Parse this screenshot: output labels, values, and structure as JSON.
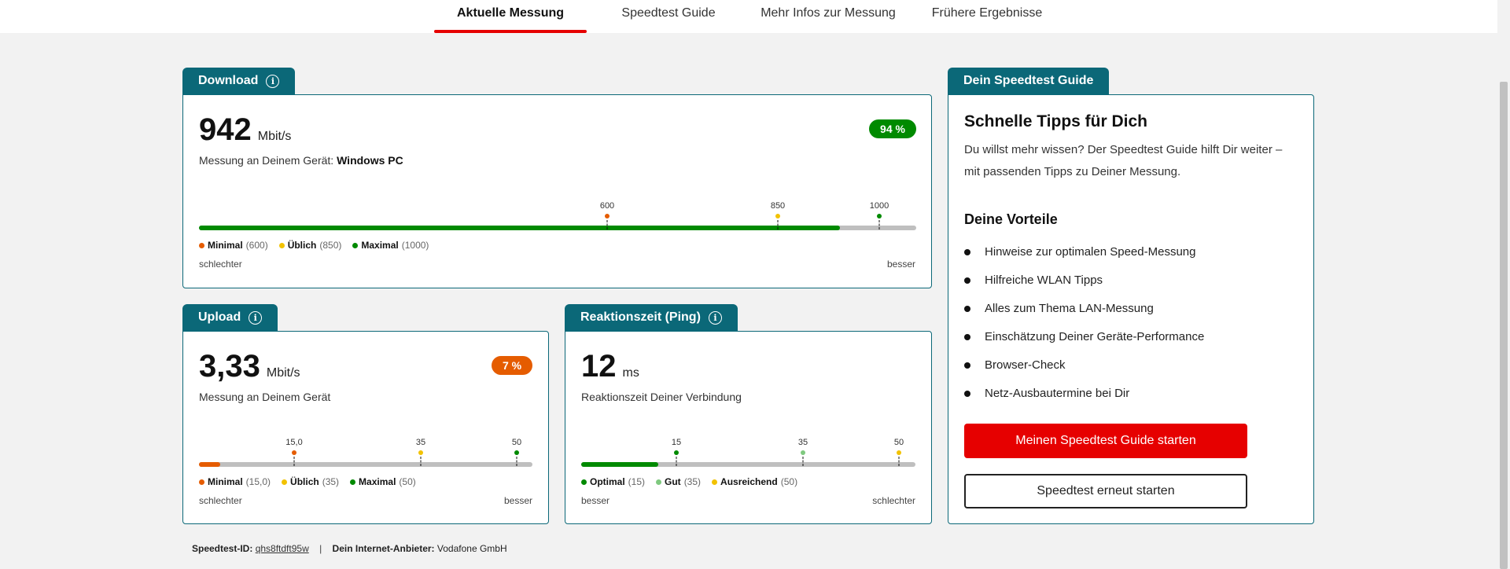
{
  "nav": {
    "tabs": [
      {
        "label": "Aktuelle Messung",
        "active": true
      },
      {
        "label": "Speedtest Guide",
        "active": false
      },
      {
        "label": "Mehr Infos zur Messung",
        "active": false
      },
      {
        "label": "Frühere Ergebnisse",
        "active": false
      }
    ]
  },
  "download": {
    "title": "Download",
    "value": "942",
    "unit": "Mbit/s",
    "subtitle_prefix": "Messung an Deinem Gerät:",
    "device": "Windows PC",
    "badge": "94 %",
    "badge_color": "#008a00",
    "fill_percent": 94,
    "ticks": [
      {
        "label": "600",
        "color": "#e55c00",
        "percent": 60
      },
      {
        "label": "850",
        "color": "#f2c200",
        "percent": 85
      },
      {
        "label": "1000",
        "color": "#008a00",
        "percent": 100
      }
    ],
    "legend": [
      {
        "label": "Minimal",
        "value": "(600)",
        "color": "#e55c00"
      },
      {
        "label": "Üblich",
        "value": "(850)",
        "color": "#f2c200"
      },
      {
        "label": "Maximal",
        "value": "(1000)",
        "color": "#008a00"
      }
    ],
    "scale_left": "schlechter",
    "scale_right": "besser"
  },
  "upload": {
    "title": "Upload",
    "value": "3,33",
    "unit": "Mbit/s",
    "subtitle": "Messung an Deinem Gerät",
    "badge": "7 %",
    "badge_color": "#e55c00",
    "fill_percent": 7,
    "ticks": [
      {
        "label": "15,0",
        "color": "#e55c00"
      },
      {
        "label": "35",
        "color": "#f2c200"
      },
      {
        "label": "50",
        "color": "#008a00"
      }
    ],
    "legend": [
      {
        "label": "Minimal",
        "value": "(15,0)",
        "color": "#e55c00"
      },
      {
        "label": "Üblich",
        "value": "(35)",
        "color": "#f2c200"
      },
      {
        "label": "Maximal",
        "value": "(50)",
        "color": "#008a00"
      }
    ],
    "scale_left": "schlechter",
    "scale_right": "besser"
  },
  "ping": {
    "title": "Reaktionszeit (Ping)",
    "value": "12",
    "unit": "ms",
    "subtitle": "Reaktionszeit Deiner Verbindung",
    "ticks": [
      {
        "label": "15",
        "color": "#008a00"
      },
      {
        "label": "35",
        "color": "#7fc97f"
      },
      {
        "label": "50",
        "color": "#f2c200"
      }
    ],
    "legend": [
      {
        "label": "Optimal",
        "value": "(15)",
        "color": "#008a00"
      },
      {
        "label": "Gut",
        "value": "(35)",
        "color": "#7fc97f"
      },
      {
        "label": "Ausreichend",
        "value": "(50)",
        "color": "#f2c200"
      }
    ],
    "scale_left": "besser",
    "scale_right": "schlechter"
  },
  "guide": {
    "tab_title": "Dein Speedtest Guide",
    "heading": "Schnelle Tipps für Dich",
    "text_line1": "Du willst mehr wissen? Der Speedtest Guide hilft Dir weiter –",
    "text_line2": "mit passenden Tipps zu Deiner Messung.",
    "benefits_title": "Deine Vorteile",
    "benefits": [
      "Hinweise zur optimalen Speed-Messung",
      "Hilfreiche WLAN Tipps",
      "Alles zum Thema LAN-Messung",
      "Einschätzung Deiner Geräte-Performance",
      "Browser-Check",
      "Netz-Ausbautermine bei Dir"
    ],
    "primary_button": "Meinen Speedtest Guide starten",
    "secondary_button": "Speedtest erneut starten"
  },
  "footer": {
    "id_label": "Speedtest-ID:",
    "id_value": "qhs8ftdft95w",
    "separator": "|",
    "provider_label": "Dein Internet-Anbieter:",
    "provider_value": "Vodafone GmbH"
  },
  "colors": {
    "accent": "#0b6878",
    "brand_red": "#e60000",
    "good": "#008a00",
    "warn": "#e55c00"
  }
}
